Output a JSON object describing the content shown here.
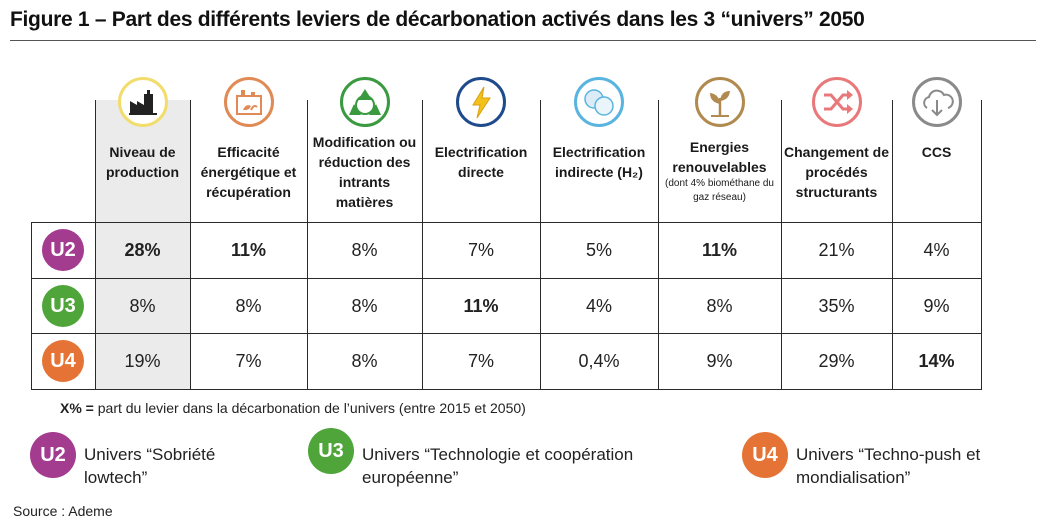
{
  "title": "Figure 1 – Part des différents leviers de décarbonation activés dans les 3 “univers” 2050",
  "chart_data": {
    "type": "table",
    "columns": [
      {
        "label": "Niveau de production",
        "note": "",
        "icon": "factory-icon",
        "color": "#f2dd6c"
      },
      {
        "label": "Efficacité énergétique et récupération",
        "note": "",
        "icon": "efficient-factory-icon",
        "color": "#e08a55"
      },
      {
        "label": "Modification ou réduction des intrants matières",
        "note": "",
        "icon": "recycle-icon",
        "color": "#3a9a3f"
      },
      {
        "label": "Electrification directe",
        "note": "",
        "icon": "lightning-icon",
        "color": "#1f4a8c"
      },
      {
        "label": "Electrification indirecte (H₂)",
        "note": "",
        "icon": "hydrogen-icon",
        "color": "#5ab4e0"
      },
      {
        "label": "Energies renouvelables",
        "note": "(dont 4% biométhane du gaz réseau)",
        "icon": "plant-icon",
        "color": "#b08a4f"
      },
      {
        "label": "Changement de procédés structurants",
        "note": "",
        "icon": "shuffle-icon",
        "color": "#e8787a"
      },
      {
        "label": "CCS",
        "note": "",
        "icon": "cloud-download-icon",
        "color": "#8a8a8a"
      }
    ],
    "rows": [
      {
        "universe": "U2",
        "color": "#a33b8f",
        "values": [
          "28%",
          "11%",
          "8%",
          "7%",
          "5%",
          "11%",
          "21%",
          "4%"
        ],
        "bold": [
          0,
          1,
          5
        ]
      },
      {
        "universe": "U3",
        "color": "#4fa53a",
        "values": [
          "8%",
          "8%",
          "8%",
          "11%",
          "4%",
          "8%",
          "35%",
          "9%"
        ],
        "bold": [
          3
        ]
      },
      {
        "universe": "U4",
        "color": "#e57336",
        "values": [
          "19%",
          "7%",
          "8%",
          "7%",
          "0,4%",
          "9%",
          "29%",
          "14%"
        ],
        "bold": [
          7
        ]
      }
    ]
  },
  "footnote": {
    "key": "X% =",
    "text": " part du levier dans la décarbonation de l’univers (entre 2015 et 2050)"
  },
  "legend": [
    {
      "badge": "U2",
      "color": "#a33b8f",
      "text": "Univers “Sobriété lowtech”"
    },
    {
      "badge": "U3",
      "color": "#4fa53a",
      "text": "Univers “Technologie et coopération européenne”"
    },
    {
      "badge": "U4",
      "color": "#e57336",
      "text": "Univers “Techno-push et mondialisation”"
    }
  ],
  "source": "Source : Ademe"
}
